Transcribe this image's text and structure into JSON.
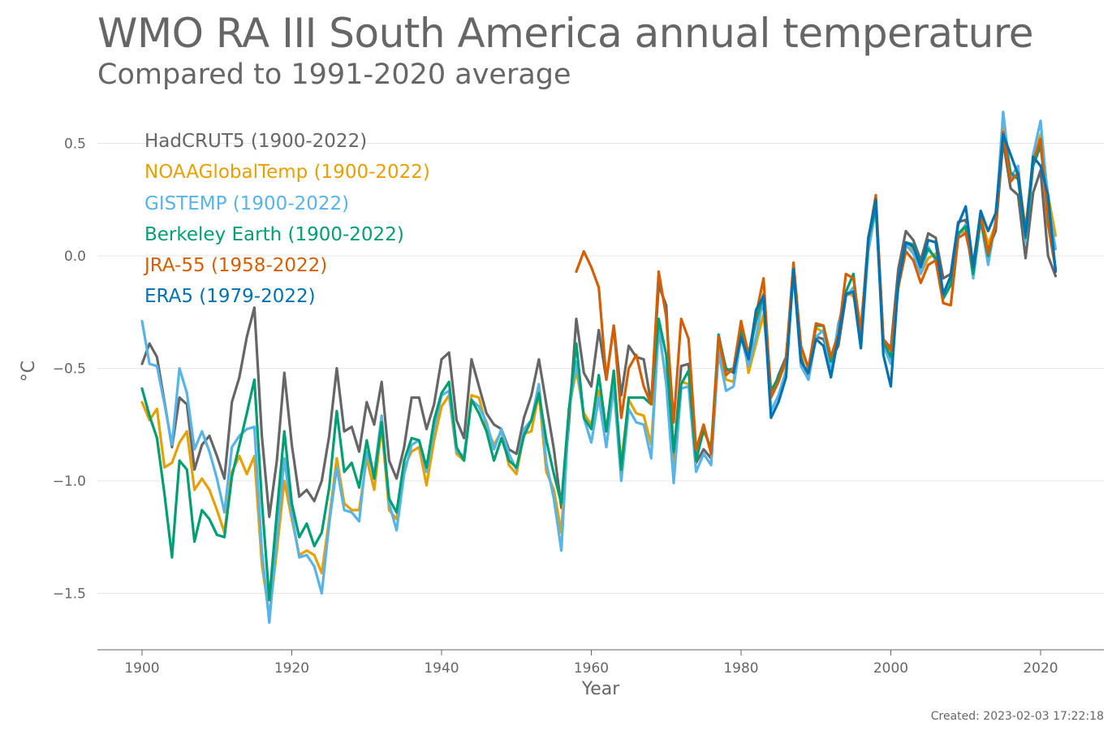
{
  "chart_data": {
    "type": "line",
    "title": "WMO RA III South America annual temperature",
    "subtitle": "Compared to 1991-2020 average",
    "xlabel": "Year",
    "ylabel": "°C",
    "xlim": [
      1894,
      2028
    ],
    "ylim": [
      -1.75,
      0.7
    ],
    "xticks": [
      1900,
      1920,
      1940,
      1960,
      1980,
      2000,
      2020
    ],
    "yticks": [
      {
        "value": 0.5,
        "label": "0.5"
      },
      {
        "value": 0.0,
        "label": "0.0"
      },
      {
        "value": -0.5,
        "label": "−0.5"
      },
      {
        "value": -1.0,
        "label": "−1.0"
      },
      {
        "value": -1.5,
        "label": "−1.5"
      }
    ],
    "grid": "horizontal",
    "legend_position": "top-left",
    "created": "Created: 2023-02-03 17:22:18",
    "series": [
      {
        "name": "HadCRUT5 (1900-2022)",
        "color": "#666666",
        "start": 1900,
        "values": [
          -0.48,
          -0.39,
          -0.45,
          -0.65,
          -0.85,
          -0.63,
          -0.66,
          -0.95,
          -0.84,
          -0.8,
          -0.89,
          -0.99,
          -0.65,
          -0.54,
          -0.36,
          -0.23,
          -0.8,
          -1.16,
          -0.91,
          -0.52,
          -0.84,
          -1.07,
          -1.04,
          -1.09,
          -1.0,
          -0.8,
          -0.5,
          -0.78,
          -0.76,
          -0.87,
          -0.65,
          -0.75,
          -0.56,
          -0.91,
          -0.99,
          -0.85,
          -0.63,
          -0.63,
          -0.77,
          -0.66,
          -0.46,
          -0.43,
          -0.73,
          -0.81,
          -0.46,
          -0.58,
          -0.7,
          -0.75,
          -0.77,
          -0.86,
          -0.88,
          -0.72,
          -0.62,
          -0.46,
          -0.66,
          -0.86,
          -1.12,
          -0.75,
          -0.28,
          -0.52,
          -0.58,
          -0.33,
          -0.55,
          -0.31,
          -0.62,
          -0.4,
          -0.45,
          -0.46,
          -0.66,
          -0.13,
          -0.22,
          -0.9,
          -0.49,
          -0.48,
          -0.92,
          -0.86,
          -0.9,
          -0.36,
          -0.5,
          -0.52,
          -0.31,
          -0.48,
          -0.26,
          -0.22,
          -0.63,
          -0.53,
          -0.45,
          -0.08,
          -0.45,
          -0.55,
          -0.36,
          -0.37,
          -0.46,
          -0.4,
          -0.18,
          -0.15,
          -0.33,
          0.08,
          0.24,
          -0.37,
          -0.41,
          -0.06,
          0.11,
          0.07,
          -0.02,
          0.1,
          0.08,
          -0.1,
          -0.08,
          0.15,
          0.16,
          -0.04,
          0.15,
          0.03,
          0.11,
          0.51,
          0.3,
          0.27,
          -0.01,
          0.28,
          0.38,
          0.0,
          -0.09
        ]
      },
      {
        "name": "NOAAGlobalTemp (1900-2022)",
        "color": "#E6A000",
        "start": 1900,
        "values": [
          -0.65,
          -0.73,
          -0.68,
          -0.94,
          -0.92,
          -0.83,
          -0.78,
          -1.04,
          -0.99,
          -1.04,
          -1.13,
          -1.23,
          -0.96,
          -0.89,
          -0.97,
          -0.89,
          -1.37,
          -1.6,
          -1.31,
          -1.0,
          -1.17,
          -1.33,
          -1.31,
          -1.33,
          -1.41,
          -1.17,
          -0.9,
          -1.1,
          -1.13,
          -1.13,
          -0.9,
          -1.04,
          -0.76,
          -1.13,
          -1.17,
          -0.94,
          -0.87,
          -0.85,
          -1.02,
          -0.82,
          -0.67,
          -0.62,
          -0.88,
          -0.91,
          -0.62,
          -0.63,
          -0.76,
          -0.84,
          -0.78,
          -0.93,
          -0.97,
          -0.79,
          -0.78,
          -0.61,
          -0.96,
          -1.04,
          -1.23,
          -0.68,
          -0.51,
          -0.7,
          -0.75,
          -0.6,
          -0.78,
          -0.59,
          -0.92,
          -0.64,
          -0.7,
          -0.71,
          -0.84,
          -0.33,
          -0.55,
          -0.97,
          -0.56,
          -0.57,
          -0.89,
          -0.78,
          -0.85,
          -0.39,
          -0.55,
          -0.56,
          -0.29,
          -0.52,
          -0.39,
          -0.26,
          -0.61,
          -0.55,
          -0.48,
          -0.04,
          -0.42,
          -0.5,
          -0.32,
          -0.34,
          -0.45,
          -0.34,
          -0.16,
          -0.18,
          -0.31,
          0.04,
          0.23,
          -0.41,
          -0.44,
          -0.14,
          0.04,
          0.03,
          -0.08,
          -0.01,
          0.01,
          -0.17,
          -0.11,
          0.1,
          0.11,
          -0.03,
          0.18,
          0.05,
          0.14,
          0.57,
          0.35,
          0.36,
          0.12,
          0.43,
          0.54,
          0.27,
          0.09
        ]
      },
      {
        "name": "GISTEMP (1900-2022)",
        "color": "#56B4E9",
        "start": 1900,
        "values": [
          -0.29,
          -0.48,
          -0.49,
          -0.66,
          -0.84,
          -0.5,
          -0.61,
          -0.86,
          -0.78,
          -0.87,
          -0.99,
          -1.14,
          -0.85,
          -0.8,
          -0.77,
          -0.76,
          -1.31,
          -1.63,
          -1.25,
          -0.9,
          -1.15,
          -1.34,
          -1.33,
          -1.38,
          -1.5,
          -1.19,
          -0.94,
          -1.13,
          -1.14,
          -1.18,
          -0.87,
          -0.97,
          -0.71,
          -1.1,
          -1.22,
          -0.97,
          -0.84,
          -0.82,
          -0.96,
          -0.77,
          -0.62,
          -0.6,
          -0.87,
          -0.89,
          -0.64,
          -0.67,
          -0.74,
          -0.86,
          -0.77,
          -0.88,
          -0.95,
          -0.77,
          -0.73,
          -0.57,
          -0.92,
          -1.08,
          -1.31,
          -0.7,
          -0.47,
          -0.72,
          -0.83,
          -0.63,
          -0.85,
          -0.58,
          -1.0,
          -0.68,
          -0.74,
          -0.75,
          -0.9,
          -0.31,
          -0.57,
          -1.01,
          -0.59,
          -0.58,
          -0.96,
          -0.88,
          -0.93,
          -0.43,
          -0.6,
          -0.58,
          -0.36,
          -0.49,
          -0.36,
          -0.18,
          -0.69,
          -0.62,
          -0.51,
          -0.07,
          -0.49,
          -0.55,
          -0.36,
          -0.33,
          -0.52,
          -0.3,
          -0.18,
          -0.14,
          -0.41,
          0.02,
          0.21,
          -0.4,
          -0.48,
          -0.12,
          0.05,
          0.01,
          -0.08,
          0.04,
          -0.02,
          -0.16,
          -0.13,
          0.09,
          0.14,
          -0.1,
          0.16,
          -0.04,
          0.16,
          0.64,
          0.35,
          0.4,
          0.06,
          0.45,
          0.6,
          0.24,
          0.03
        ]
      },
      {
        "name": "Berkeley Earth (1900-2022)",
        "color": "#009E73",
        "start": 1900,
        "values": [
          -0.59,
          -0.71,
          -0.81,
          -1.06,
          -1.34,
          -0.91,
          -0.95,
          -1.27,
          -1.13,
          -1.17,
          -1.24,
          -1.25,
          -0.98,
          -0.84,
          -0.7,
          -0.55,
          -1.09,
          -1.53,
          -1.14,
          -0.78,
          -1.1,
          -1.25,
          -1.19,
          -1.29,
          -1.23,
          -1.03,
          -0.69,
          -0.96,
          -0.92,
          -1.03,
          -0.82,
          -0.99,
          -0.74,
          -1.08,
          -1.14,
          -0.91,
          -0.81,
          -0.82,
          -0.94,
          -0.73,
          -0.61,
          -0.56,
          -0.85,
          -0.91,
          -0.64,
          -0.7,
          -0.78,
          -0.91,
          -0.81,
          -0.91,
          -0.94,
          -0.8,
          -0.73,
          -0.61,
          -0.82,
          -0.97,
          -1.1,
          -0.69,
          -0.39,
          -0.72,
          -0.77,
          -0.53,
          -0.78,
          -0.51,
          -0.95,
          -0.63,
          -0.63,
          -0.63,
          -0.66,
          -0.28,
          -0.44,
          -0.87,
          -0.57,
          -0.51,
          -0.91,
          -0.77,
          -0.86,
          -0.35,
          -0.51,
          -0.5,
          -0.33,
          -0.45,
          -0.29,
          -0.17,
          -0.6,
          -0.54,
          -0.46,
          -0.06,
          -0.47,
          -0.52,
          -0.31,
          -0.31,
          -0.47,
          -0.36,
          -0.16,
          -0.08,
          -0.38,
          0.07,
          0.22,
          -0.38,
          -0.45,
          -0.12,
          0.06,
          0.05,
          -0.04,
          0.03,
          -0.01,
          -0.19,
          -0.13,
          0.1,
          0.13,
          -0.08,
          0.16,
          0.0,
          0.14,
          0.55,
          0.37,
          0.34,
          0.08,
          0.4,
          0.49,
          0.2,
          -0.06
        ]
      },
      {
        "name": "JRA-55 (1958-2022)",
        "color": "#D55E00",
        "start": 1958,
        "values": [
          -0.07,
          0.02,
          -0.05,
          -0.14,
          -0.55,
          -0.31,
          -0.72,
          -0.5,
          -0.44,
          -0.58,
          -0.66,
          -0.07,
          -0.27,
          -0.74,
          -0.28,
          -0.37,
          -0.86,
          -0.75,
          -0.88,
          -0.36,
          -0.53,
          -0.5,
          -0.29,
          -0.44,
          -0.26,
          -0.1,
          -0.63,
          -0.56,
          -0.46,
          -0.03,
          -0.4,
          -0.5,
          -0.3,
          -0.31,
          -0.45,
          -0.35,
          -0.08,
          -0.1,
          -0.34,
          0.07,
          0.27,
          -0.37,
          -0.42,
          -0.14,
          0.02,
          -0.02,
          -0.12,
          -0.04,
          -0.02,
          -0.21,
          -0.22,
          0.08,
          0.1,
          -0.05,
          0.18,
          0.01,
          0.14,
          0.55,
          0.33,
          0.37,
          0.11,
          0.42,
          0.52,
          0.14,
          -0.06
        ]
      },
      {
        "name": "ERA5 (1979-2022)",
        "color": "#0072B2",
        "start": 1979,
        "values": [
          -0.52,
          -0.36,
          -0.46,
          -0.24,
          -0.18,
          -0.72,
          -0.65,
          -0.54,
          -0.06,
          -0.47,
          -0.52,
          -0.37,
          -0.4,
          -0.54,
          -0.36,
          -0.17,
          -0.16,
          -0.41,
          0.08,
          0.25,
          -0.44,
          -0.58,
          -0.12,
          0.06,
          0.04,
          -0.05,
          0.07,
          0.06,
          -0.17,
          -0.09,
          0.14,
          0.22,
          -0.05,
          0.2,
          0.11,
          0.19,
          0.54,
          0.45,
          0.36,
          0.09,
          0.44,
          0.4,
          0.27,
          -0.07
        ]
      }
    ]
  }
}
